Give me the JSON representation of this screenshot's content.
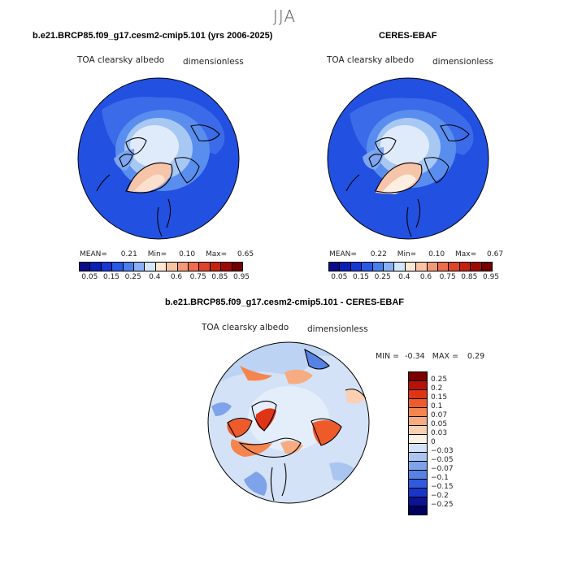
{
  "season": "JJA",
  "panels": [
    {
      "title": "b.e21.BRCP85.f09_g17.cesm2-cmip5.101 (yrs 2006-2025)",
      "variable": "TOA clearsky albedo",
      "units": "dimensionless",
      "mean_label": "MEAN=",
      "mean": "0.21",
      "min_label": "Min=",
      "min": "0.10",
      "max_label": "Max=",
      "max": "0.65"
    },
    {
      "title": "CERES-EBAF",
      "variable": "TOA clearsky albedo",
      "units": "dimensionless",
      "mean_label": "MEAN=",
      "mean": "0.22",
      "min_label": "Min=",
      "min": "0.10",
      "max_label": "Max=",
      "max": "0.67"
    }
  ],
  "colorbar": {
    "colors": [
      "#0a0a8a",
      "#0a1fb4",
      "#1637d6",
      "#2a58e6",
      "#4a80ee",
      "#8ab0f4",
      "#d4e6fb",
      "#fde6d2",
      "#f8c4a4",
      "#f29a78",
      "#ec6e4e",
      "#e04428",
      "#c4220e",
      "#a00a04",
      "#720000"
    ],
    "tick_labels": [
      "0.05",
      "0.15",
      "0.25",
      "0.4",
      "0.6",
      "0.75",
      "0.85",
      "0.95"
    ]
  },
  "diff": {
    "title": "b.e21.BRCP85.f09_g17.cesm2-cmip5.101 - CERES-EBAF",
    "variable": "TOA clearsky albedo",
    "units": "dimensionless",
    "min_label": "MIN =",
    "min": "-0.34",
    "max_label": "MAX =",
    "max": "0.29",
    "colorbar": {
      "colors": [
        "#7a0000",
        "#b81208",
        "#dd3515",
        "#ef5a2a",
        "#f4854e",
        "#f7ab80",
        "#fbcfb2",
        "#fdf0e4",
        "#d3e2f6",
        "#aac6f0",
        "#7fa3ea",
        "#5582e4",
        "#2f5ade",
        "#1a36c8",
        "#0a1494",
        "#00005e"
      ],
      "tick_labels": [
        "0.25",
        "0.2",
        "0.15",
        "0.1",
        "0.07",
        "0.05",
        "0.03",
        "0",
        "−0.03",
        "−0.05",
        "−0.07",
        "−0.1",
        "−0.15",
        "−0.2",
        "−0.25"
      ]
    }
  }
}
